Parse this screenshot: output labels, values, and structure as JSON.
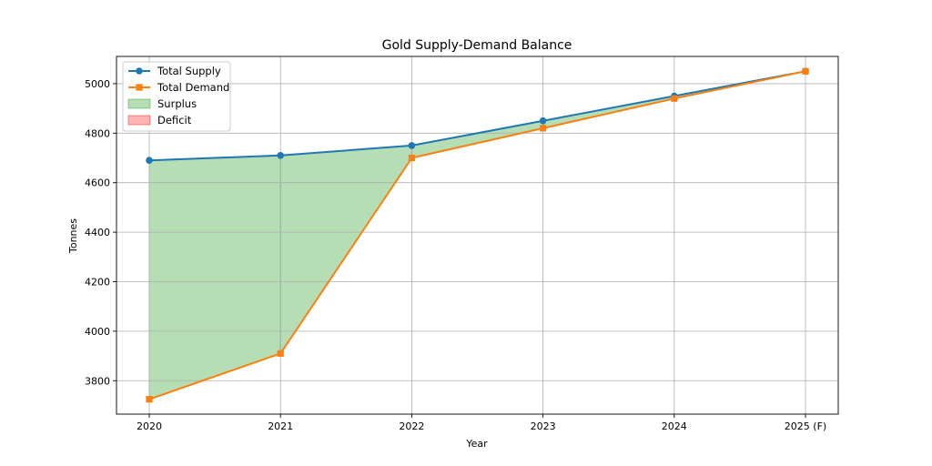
{
  "chart_data": {
    "type": "line",
    "title": "Gold Supply-Demand Balance",
    "xlabel": "Year",
    "ylabel": "Tonnes",
    "categories": [
      "2020",
      "2021",
      "2022",
      "2023",
      "2024",
      "2025 (F)"
    ],
    "series": [
      {
        "name": "Total Supply",
        "values": [
          4690,
          4710,
          4750,
          4850,
          4950,
          5050
        ],
        "color": "#1f77b4",
        "marker": "circle"
      },
      {
        "name": "Total Demand",
        "values": [
          3725,
          3910,
          4700,
          4820,
          4940,
          5050
        ],
        "color": "#ff7f0e",
        "marker": "square"
      }
    ],
    "fills": [
      {
        "name": "Surplus",
        "color": "#2ca02c",
        "opacity": 0.35
      },
      {
        "name": "Deficit",
        "color": "#ff0000",
        "opacity": 0.3
      }
    ],
    "ylim": [
      3665,
      5110
    ],
    "yticks": [
      3800,
      4000,
      4200,
      4400,
      4600,
      4800,
      5000
    ],
    "grid": true,
    "legend_position": "upper-left"
  }
}
